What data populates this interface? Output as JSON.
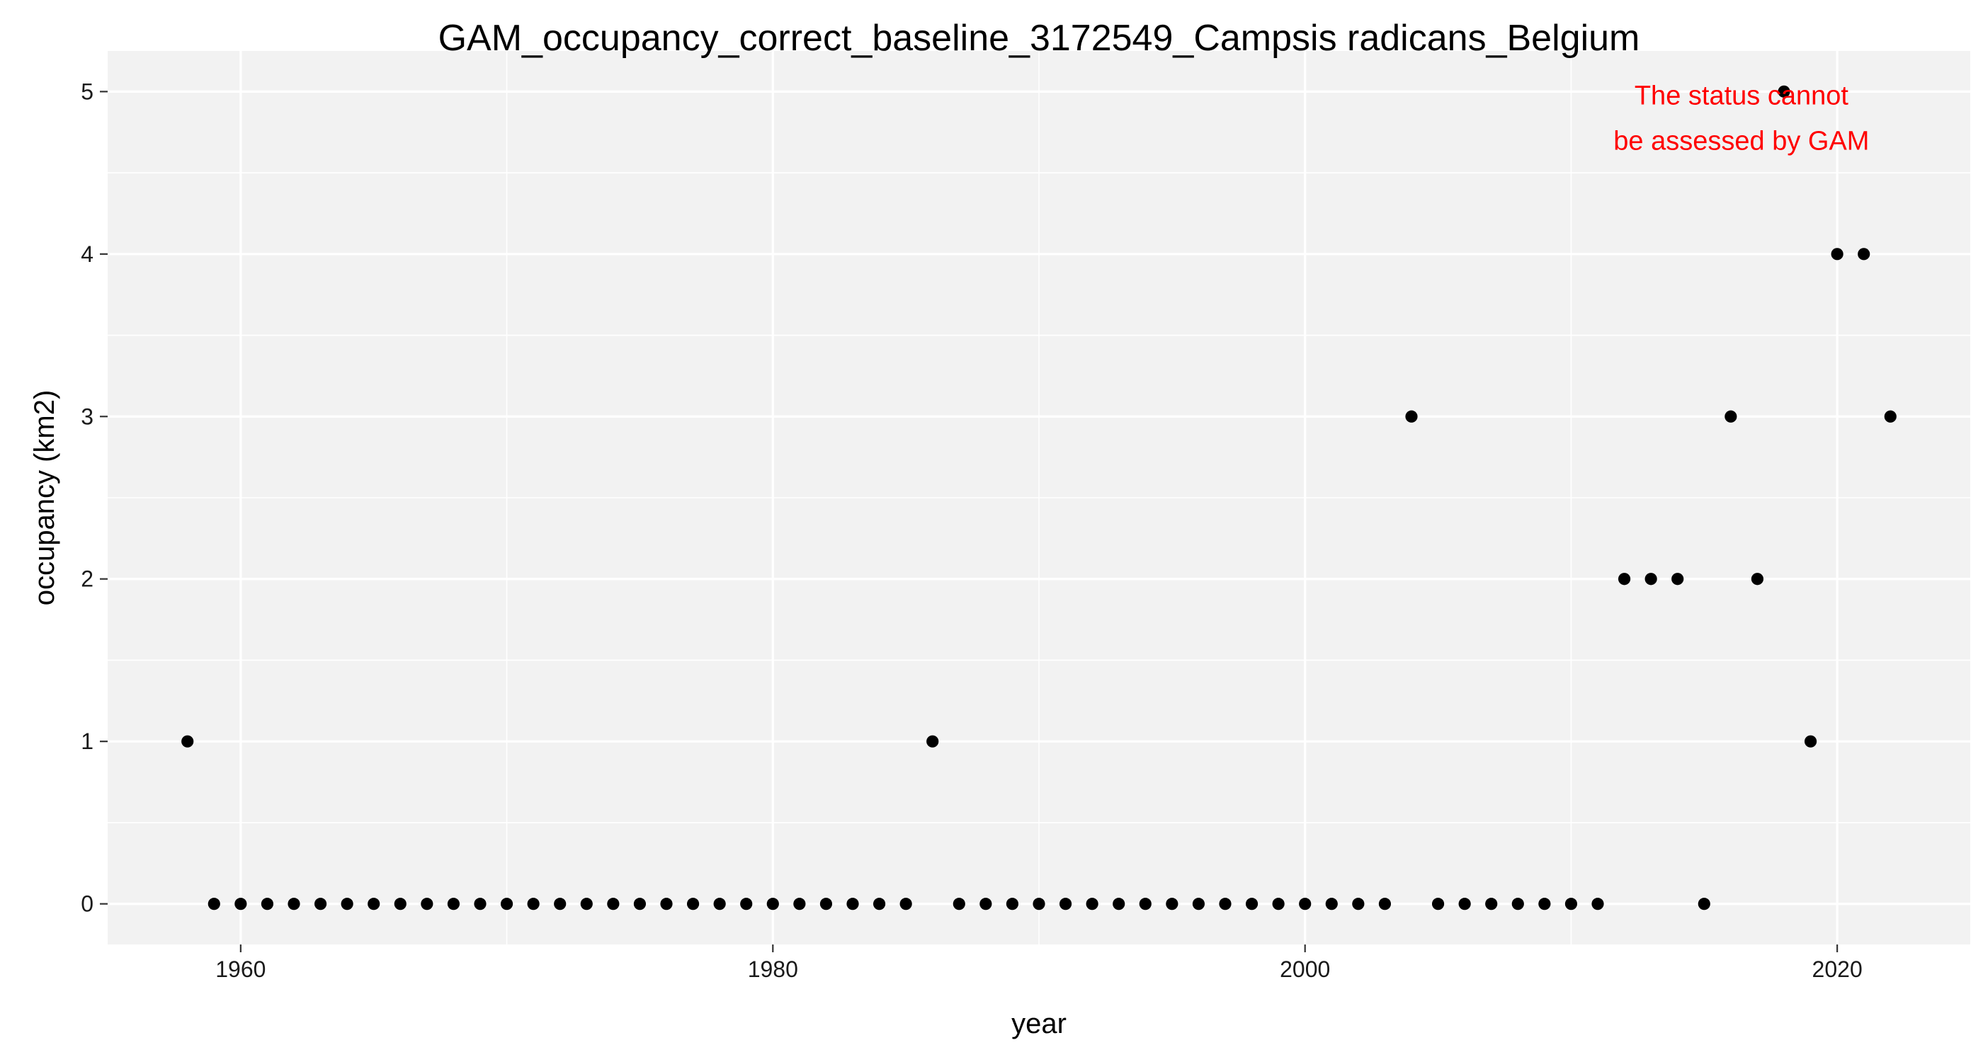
{
  "chart_data": {
    "type": "scatter",
    "title": "GAM_occupancy_correct_baseline_3172549_Campsis radicans_Belgium",
    "xlabel": "year",
    "ylabel": "occupancy (km2)",
    "xlim": [
      1955,
      2025
    ],
    "ylim": [
      -0.25,
      5.25
    ],
    "x_ticks": [
      1960,
      1980,
      2000,
      2020
    ],
    "x_tick_labels": [
      "1960",
      "1980",
      "2000",
      "2020"
    ],
    "y_ticks": [
      0,
      1,
      2,
      3,
      4,
      5
    ],
    "y_tick_labels": [
      "0",
      "1",
      "2",
      "3",
      "4",
      "5"
    ],
    "grid": true,
    "legend": "none",
    "point_color": "#000000",
    "panel_color": "#f2f2f2",
    "grid_color": "#ffffff",
    "annotation": {
      "lines": [
        "The status cannot",
        "be assessed by GAM"
      ],
      "color": "#ff0000"
    },
    "points": [
      {
        "x": 1958,
        "y": 1
      },
      {
        "x": 1959,
        "y": 0
      },
      {
        "x": 1960,
        "y": 0
      },
      {
        "x": 1961,
        "y": 0
      },
      {
        "x": 1962,
        "y": 0
      },
      {
        "x": 1963,
        "y": 0
      },
      {
        "x": 1964,
        "y": 0
      },
      {
        "x": 1965,
        "y": 0
      },
      {
        "x": 1966,
        "y": 0
      },
      {
        "x": 1967,
        "y": 0
      },
      {
        "x": 1968,
        "y": 0
      },
      {
        "x": 1969,
        "y": 0
      },
      {
        "x": 1970,
        "y": 0
      },
      {
        "x": 1971,
        "y": 0
      },
      {
        "x": 1972,
        "y": 0
      },
      {
        "x": 1973,
        "y": 0
      },
      {
        "x": 1974,
        "y": 0
      },
      {
        "x": 1975,
        "y": 0
      },
      {
        "x": 1976,
        "y": 0
      },
      {
        "x": 1977,
        "y": 0
      },
      {
        "x": 1978,
        "y": 0
      },
      {
        "x": 1979,
        "y": 0
      },
      {
        "x": 1980,
        "y": 0
      },
      {
        "x": 1981,
        "y": 0
      },
      {
        "x": 1982,
        "y": 0
      },
      {
        "x": 1983,
        "y": 0
      },
      {
        "x": 1984,
        "y": 0
      },
      {
        "x": 1985,
        "y": 0
      },
      {
        "x": 1986,
        "y": 1
      },
      {
        "x": 1987,
        "y": 0
      },
      {
        "x": 1988,
        "y": 0
      },
      {
        "x": 1989,
        "y": 0
      },
      {
        "x": 1990,
        "y": 0
      },
      {
        "x": 1991,
        "y": 0
      },
      {
        "x": 1992,
        "y": 0
      },
      {
        "x": 1993,
        "y": 0
      },
      {
        "x": 1994,
        "y": 0
      },
      {
        "x": 1995,
        "y": 0
      },
      {
        "x": 1996,
        "y": 0
      },
      {
        "x": 1997,
        "y": 0
      },
      {
        "x": 1998,
        "y": 0
      },
      {
        "x": 1999,
        "y": 0
      },
      {
        "x": 2000,
        "y": 0
      },
      {
        "x": 2001,
        "y": 0
      },
      {
        "x": 2002,
        "y": 0
      },
      {
        "x": 2003,
        "y": 0
      },
      {
        "x": 2004,
        "y": 3
      },
      {
        "x": 2005,
        "y": 0
      },
      {
        "x": 2006,
        "y": 0
      },
      {
        "x": 2007,
        "y": 0
      },
      {
        "x": 2008,
        "y": 0
      },
      {
        "x": 2009,
        "y": 0
      },
      {
        "x": 2010,
        "y": 0
      },
      {
        "x": 2011,
        "y": 0
      },
      {
        "x": 2012,
        "y": 2
      },
      {
        "x": 2013,
        "y": 2
      },
      {
        "x": 2014,
        "y": 2
      },
      {
        "x": 2015,
        "y": 0
      },
      {
        "x": 2016,
        "y": 3
      },
      {
        "x": 2017,
        "y": 2
      },
      {
        "x": 2018,
        "y": 5
      },
      {
        "x": 2019,
        "y": 1
      },
      {
        "x": 2020,
        "y": 4
      },
      {
        "x": 2021,
        "y": 4
      },
      {
        "x": 2022,
        "y": 3
      }
    ]
  }
}
